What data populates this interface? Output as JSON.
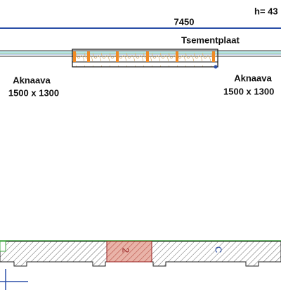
{
  "drawing": {
    "height_note": "h= 43",
    "dimension": "7450",
    "material": "Tsementplaat",
    "openings": [
      {
        "name": "Aknaava",
        "size": "1500 x 1300"
      },
      {
        "name": "Aknaava",
        "size": "1500 x 1300"
      }
    ],
    "room_marks": [
      "2",
      "C"
    ]
  }
}
